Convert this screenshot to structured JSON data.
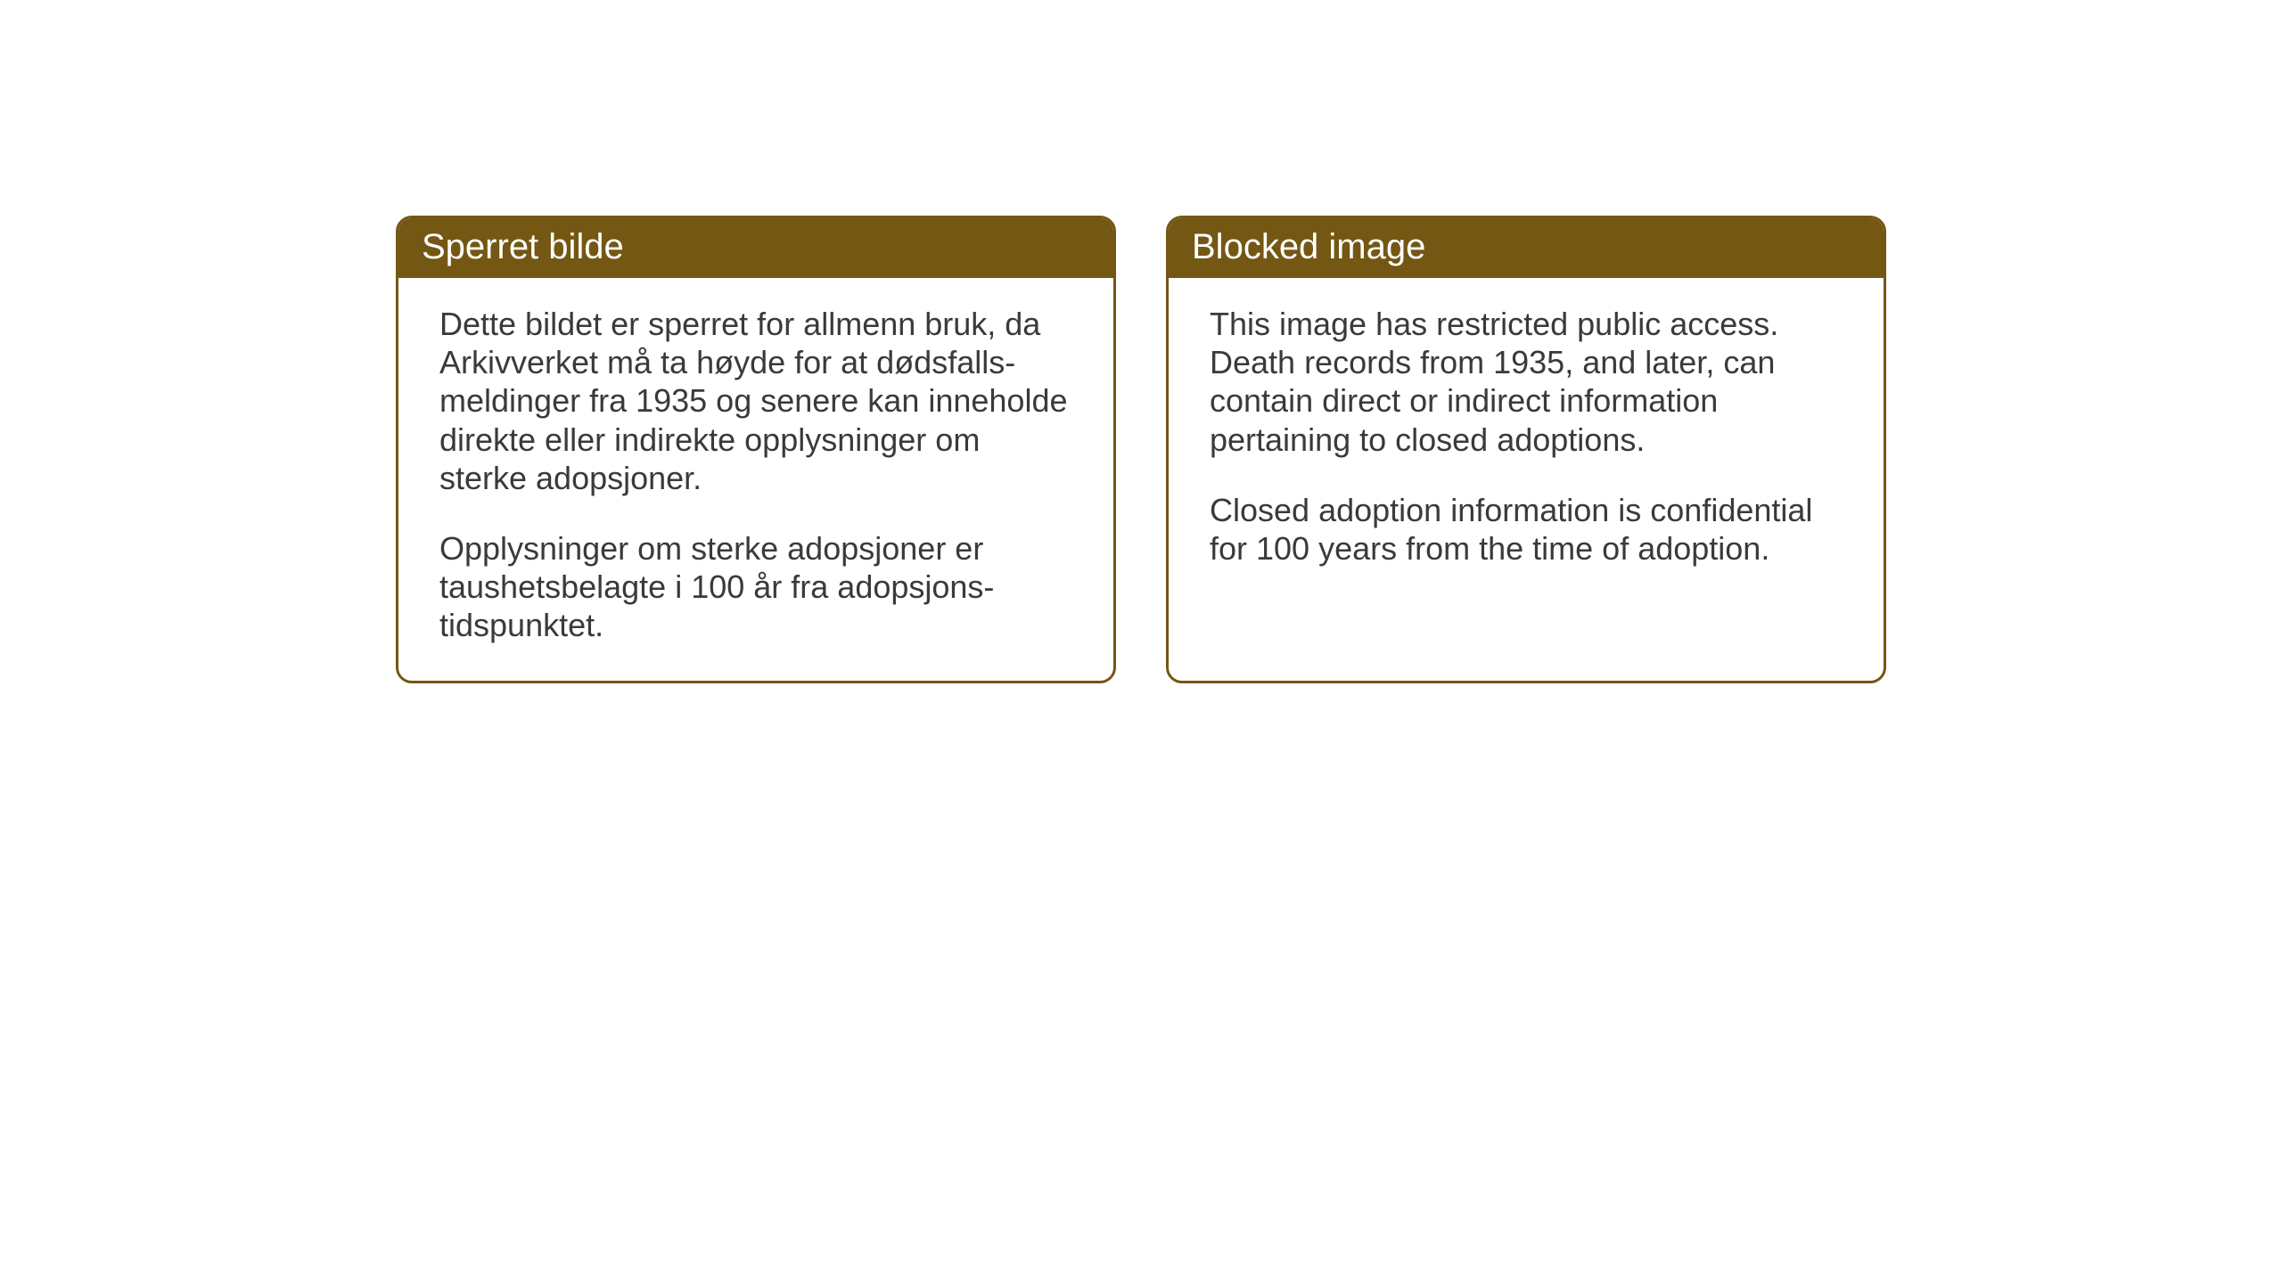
{
  "colors": {
    "header_bg": "#735713",
    "header_text": "#ffffff",
    "border": "#735713",
    "body_text": "#3a3a3a",
    "page_bg": "#ffffff"
  },
  "typography": {
    "header_fontsize": 40,
    "body_fontsize": 36
  },
  "cards": {
    "norwegian": {
      "title": "Sperret bilde",
      "para1": "Dette bildet er sperret for allmenn bruk, da Arkivverket må ta høyde for at dødsfalls-meldinger fra 1935 og senere kan inneholde direkte eller indirekte opplysninger om sterke adopsjoner.",
      "para2": "Opplysninger om sterke adopsjoner er taushetsbelagte i 100 år fra adopsjons-tidspunktet."
    },
    "english": {
      "title": "Blocked image",
      "para1": "This image has restricted public access. Death records from 1935, and later, can contain direct or indirect information pertaining to closed adoptions.",
      "para2": "Closed adoption information is confidential for 100 years from the time of adoption."
    }
  }
}
